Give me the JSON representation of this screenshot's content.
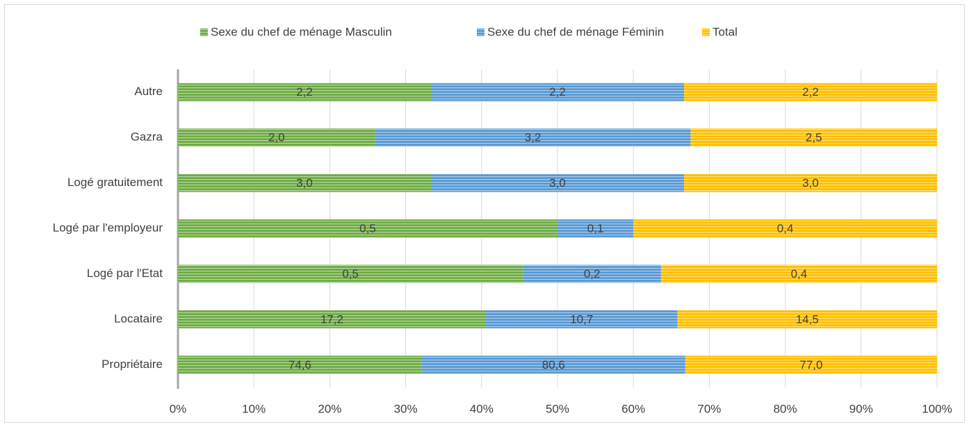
{
  "chart_data": {
    "type": "bar",
    "orientation": "horizontal",
    "stacked": "percent",
    "categories": [
      "Autre",
      "Gazra",
      "Logé gratuitement",
      "Logé par l'employeur",
      "Logé par l'Etat",
      "Locataire",
      "Propriétaire"
    ],
    "series": [
      {
        "name": "Sexe du chef de ménage Masculin",
        "color": "#70ad47",
        "values": [
          2.2,
          2.0,
          3.0,
          0.5,
          0.5,
          17.2,
          74.6
        ],
        "value_labels": [
          "2,2",
          "2,0",
          "3,0",
          "0,5",
          "0,5",
          "17,2",
          "74,6"
        ]
      },
      {
        "name": "Sexe du chef de ménage Féminin",
        "color": "#5b9bd5",
        "values": [
          2.2,
          3.2,
          3.0,
          0.1,
          0.2,
          10.7,
          80.6
        ],
        "value_labels": [
          "2,2",
          "3,2",
          "3,0",
          "0,1",
          "0,2",
          "10,7",
          "80,6"
        ]
      },
      {
        "name": "Total",
        "color": "#ffc000",
        "values": [
          2.2,
          2.5,
          3.0,
          0.4,
          0.4,
          14.5,
          77.0
        ],
        "value_labels": [
          "2,2",
          "2,5",
          "3,0",
          "0,4",
          "0,4",
          "14,5",
          "77,0"
        ]
      }
    ],
    "xlim": [
      0,
      100
    ],
    "xticks": [
      {
        "value": 0,
        "label": "0%"
      },
      {
        "value": 10,
        "label": "10%"
      },
      {
        "value": 20,
        "label": "20%"
      },
      {
        "value": 30,
        "label": "30%"
      },
      {
        "value": 40,
        "label": "40%"
      },
      {
        "value": 50,
        "label": "50%"
      },
      {
        "value": 60,
        "label": "60%"
      },
      {
        "value": 70,
        "label": "70%"
      },
      {
        "value": 80,
        "label": "80%"
      },
      {
        "value": 90,
        "label": "90%"
      },
      {
        "value": 100,
        "label": "100%"
      }
    ],
    "grid": true,
    "legend": "top"
  }
}
